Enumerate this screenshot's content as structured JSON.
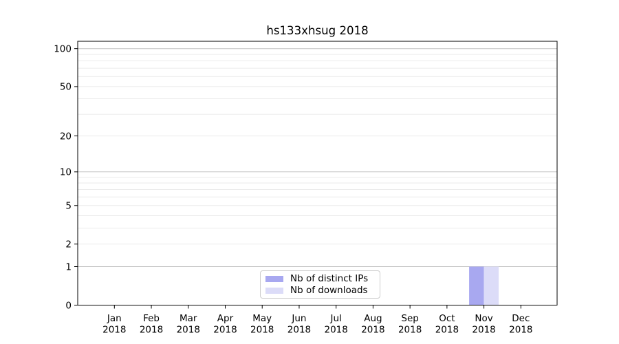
{
  "chart_data": {
    "type": "bar",
    "title": "hs133xhsug 2018",
    "xlabel": "",
    "ylabel": "",
    "x": [
      {
        "month": "Jan",
        "year": "2018"
      },
      {
        "month": "Feb",
        "year": "2018"
      },
      {
        "month": "Mar",
        "year": "2018"
      },
      {
        "month": "Apr",
        "year": "2018"
      },
      {
        "month": "May",
        "year": "2018"
      },
      {
        "month": "Jun",
        "year": "2018"
      },
      {
        "month": "Jul",
        "year": "2018"
      },
      {
        "month": "Aug",
        "year": "2018"
      },
      {
        "month": "Sep",
        "year": "2018"
      },
      {
        "month": "Oct",
        "year": "2018"
      },
      {
        "month": "Nov",
        "year": "2018"
      },
      {
        "month": "Dec",
        "year": "2018"
      }
    ],
    "series": [
      {
        "name": "Nb of distinct IPs",
        "color": "#a8a8f0",
        "values": [
          0,
          0,
          0,
          0,
          0,
          0,
          0,
          0,
          0,
          0,
          1,
          0
        ]
      },
      {
        "name": "Nb of downloads",
        "color": "#dcdcf8",
        "values": [
          0,
          0,
          0,
          0,
          0,
          0,
          0,
          0,
          0,
          0,
          1,
          0
        ]
      }
    ],
    "y_scale": "log1p",
    "ylim": [
      0,
      113
    ],
    "y_ticks": [
      0,
      1,
      2,
      5,
      10,
      20,
      50,
      100
    ],
    "y_major_gridlines": [
      1,
      10,
      100
    ],
    "y_minor_gridlines": [
      2,
      3,
      4,
      5,
      6,
      7,
      8,
      9,
      20,
      30,
      40,
      50,
      60,
      70,
      80,
      90
    ],
    "grid": "horizontal",
    "legend_position": "inside-bottom-center",
    "colors": {
      "major_grid": "#c4c4c4",
      "minor_grid": "#ebebeb",
      "axis": "#000000",
      "text": "#000000",
      "legend_border": "#cccccc"
    }
  }
}
